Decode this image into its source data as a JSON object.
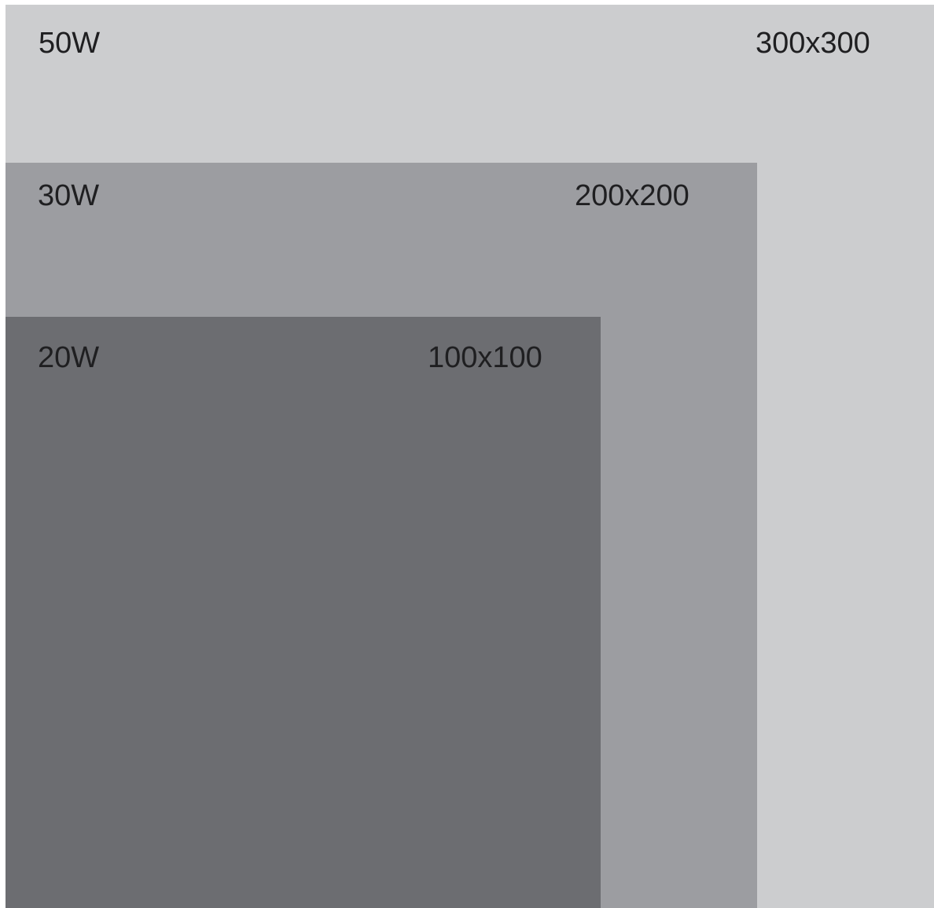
{
  "colors": {
    "panel_large": "#cccdcf",
    "panel_medium": "#9c9da1",
    "panel_small": "#6c6d71",
    "text": "#1f1f21"
  },
  "panels": [
    {
      "id": "large",
      "wattage": "50W",
      "dimensions": "300x300"
    },
    {
      "id": "medium",
      "wattage": "30W",
      "dimensions": "200x200"
    },
    {
      "id": "small",
      "wattage": "20W",
      "dimensions": "100x100"
    }
  ]
}
